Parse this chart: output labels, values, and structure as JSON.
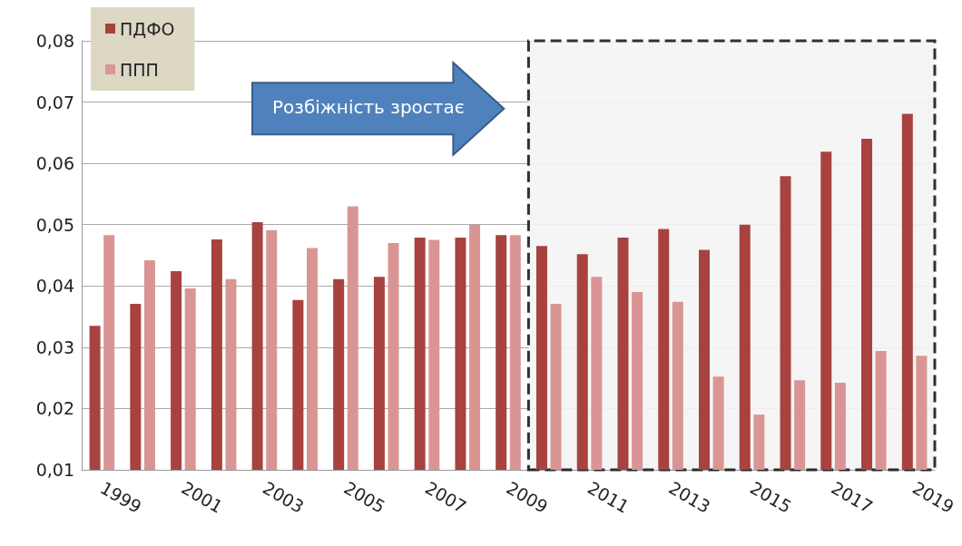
{
  "chart_data": {
    "type": "bar",
    "x": [
      1999,
      2000,
      2001,
      2002,
      2003,
      2004,
      2005,
      2006,
      2007,
      2008,
      2009,
      2010,
      2011,
      2012,
      2013,
      2014,
      2015,
      2016,
      2017,
      2018,
      2019
    ],
    "xlim": [
      1998.5,
      2019.5
    ],
    "xticks": [
      1999,
      2001,
      2003,
      2005,
      2007,
      2009,
      2011,
      2013,
      2015,
      2017,
      2019
    ],
    "ylim": [
      0.01,
      0.08
    ],
    "yticks": [
      {
        "value": 0.01,
        "label": "0,01"
      },
      {
        "value": 0.02,
        "label": "0,02"
      },
      {
        "value": 0.03,
        "label": "0,03"
      },
      {
        "value": 0.04,
        "label": "0,04"
      },
      {
        "value": 0.05,
        "label": "0,05"
      },
      {
        "value": 0.06,
        "label": "0,06"
      },
      {
        "value": 0.07,
        "label": "0,07"
      },
      {
        "value": 0.08,
        "label": "0,08"
      }
    ],
    "series": [
      {
        "name": "ПДФО",
        "color": "#a8423f",
        "values": [
          0.0335,
          0.0371,
          0.0424,
          0.0476,
          0.0504,
          0.0377,
          0.0411,
          0.0415,
          0.0479,
          0.0479,
          0.0483,
          0.0465,
          0.0452,
          0.0479,
          0.0493,
          0.0459,
          0.05,
          0.0579,
          0.0619,
          0.064,
          0.0681
        ]
      },
      {
        "name": "ППП",
        "color": "#d99594",
        "values": [
          0.0483,
          0.0442,
          0.0396,
          0.0411,
          0.0491,
          0.0462,
          0.053,
          0.047,
          0.0475,
          0.05,
          0.0483,
          0.0371,
          0.0415,
          0.039,
          0.0374,
          0.0252,
          0.019,
          0.0246,
          0.0242,
          0.0294,
          0.0286
        ]
      }
    ],
    "bands": [
      {
        "axis": "x",
        "from": 2009.5,
        "to": 2019.5,
        "color": "#f4f4f4"
      }
    ],
    "annotations": [
      "Розбіжність зростає"
    ],
    "grid": "y",
    "legend": "top left"
  }
}
